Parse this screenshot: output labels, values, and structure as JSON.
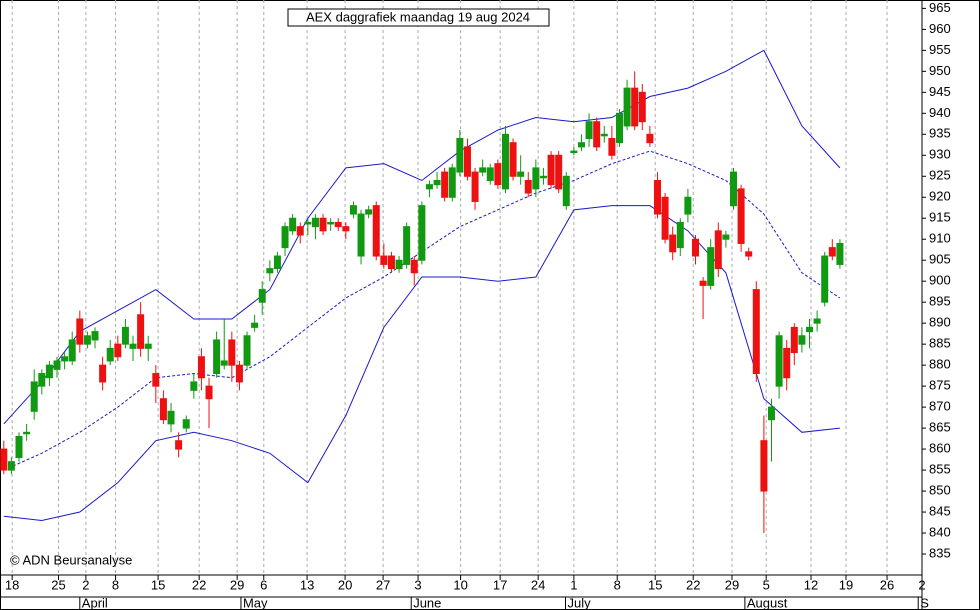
{
  "chart_data": {
    "type": "candlestick",
    "title": "AEX daggrafiek maandag 19 aug 2024",
    "annotation": "© ADN Beursanalyse",
    "up_color": "#119911",
    "down_color": "#ee1111",
    "band_color": "#1a1acc",
    "xlim": [
      -0.5,
      120.8
    ],
    "ylim": [
      830,
      967
    ],
    "yticks": [
      835,
      840,
      845,
      850,
      855,
      860,
      865,
      870,
      875,
      880,
      885,
      890,
      895,
      900,
      905,
      910,
      915,
      920,
      925,
      930,
      935,
      940,
      945,
      950,
      955,
      960,
      965
    ],
    "xticks": [
      {
        "value": 1.1,
        "label": "18"
      },
      {
        "value": 7.2,
        "label": "25"
      },
      {
        "value": 10.8,
        "label": "2"
      },
      {
        "value": 14.7,
        "label": "8"
      },
      {
        "value": 20.3,
        "label": "15"
      },
      {
        "value": 25.7,
        "label": "22"
      },
      {
        "value": 30.7,
        "label": "29"
      },
      {
        "value": 34.2,
        "label": "6"
      },
      {
        "value": 39.9,
        "label": "13"
      },
      {
        "value": 44.9,
        "label": "20"
      },
      {
        "value": 49.9,
        "label": "27"
      },
      {
        "value": 54.5,
        "label": "3"
      },
      {
        "value": 60.1,
        "label": "10"
      },
      {
        "value": 65.3,
        "label": "17"
      },
      {
        "value": 70.3,
        "label": "24"
      },
      {
        "value": 75,
        "label": "1"
      },
      {
        "value": 80.7,
        "label": "8"
      },
      {
        "value": 85.7,
        "label": "15"
      },
      {
        "value": 90.7,
        "label": "22"
      },
      {
        "value": 95.8,
        "label": "29"
      },
      {
        "value": 100.3,
        "label": "5"
      },
      {
        "value": 106.2,
        "label": "12"
      },
      {
        "value": 110.8,
        "label": "19"
      },
      {
        "value": 116.2,
        "label": "26"
      },
      {
        "value": 120.8,
        "label": "2"
      }
    ],
    "month_ticks": [
      {
        "value": 10,
        "label": "April"
      },
      {
        "value": 31.2,
        "label": "May"
      },
      {
        "value": 53.6,
        "label": "June"
      },
      {
        "value": 73.9,
        "label": "July"
      },
      {
        "value": 97.5,
        "label": "August"
      },
      {
        "value": 120.3,
        "label": "S"
      }
    ],
    "candles": [
      [
        860,
        862,
        854,
        855
      ],
      [
        855,
        858,
        854,
        857
      ],
      [
        858,
        864,
        857,
        863
      ],
      [
        864,
        866,
        862,
        864
      ],
      [
        869,
        879,
        867,
        876
      ],
      [
        875,
        879,
        873,
        878
      ],
      [
        877,
        881,
        875,
        880
      ],
      [
        879,
        882,
        877,
        881
      ],
      [
        881,
        883,
        879,
        882
      ],
      [
        881,
        888,
        880,
        886
      ],
      [
        891,
        893,
        883,
        885
      ],
      [
        885,
        888,
        884,
        887
      ],
      [
        886,
        889,
        884,
        888
      ],
      [
        880,
        882,
        874,
        876
      ],
      [
        881,
        886,
        880,
        884
      ],
      [
        885,
        887,
        881,
        882
      ],
      [
        885,
        891,
        884,
        889
      ],
      [
        884,
        887,
        881,
        885
      ],
      [
        892,
        895,
        882,
        884
      ],
      [
        884,
        887,
        881,
        885
      ],
      [
        878,
        880,
        871,
        875
      ],
      [
        872,
        874,
        866,
        867
      ],
      [
        866,
        871,
        864,
        869
      ],
      [
        862,
        864,
        858,
        860
      ],
      [
        865,
        868,
        864,
        867
      ],
      [
        874,
        878,
        872,
        876
      ],
      [
        882,
        884,
        874,
        877
      ],
      [
        875,
        877,
        865,
        872
      ],
      [
        878,
        888,
        877,
        886
      ],
      [
        880,
        891,
        879,
        881
      ],
      [
        886,
        888,
        876,
        880
      ],
      [
        880,
        881,
        874,
        876
      ],
      [
        880,
        888,
        879,
        887
      ],
      [
        889,
        892,
        888,
        890
      ],
      [
        895,
        900,
        892,
        898
      ],
      [
        902,
        905,
        900,
        903
      ],
      [
        903,
        907,
        902,
        906
      ],
      [
        908,
        914,
        906,
        913
      ],
      [
        912,
        916,
        911,
        915
      ],
      [
        913,
        914,
        909,
        911
      ],
      [
        914,
        915,
        911,
        914
      ],
      [
        913,
        916,
        910,
        915
      ],
      [
        915,
        916,
        911,
        912
      ],
      [
        914,
        915,
        912,
        914
      ],
      [
        914,
        915,
        912,
        913
      ],
      [
        913,
        914,
        910,
        912
      ],
      [
        916,
        919,
        915,
        918
      ],
      [
        906,
        917,
        904,
        916
      ],
      [
        916,
        918,
        915,
        917
      ],
      [
        918,
        919,
        905,
        906
      ],
      [
        906,
        909,
        903,
        904
      ],
      [
        906,
        907,
        902,
        903
      ],
      [
        903,
        906,
        902,
        905
      ],
      [
        904,
        914,
        903,
        913
      ],
      [
        905,
        906,
        899,
        902
      ],
      [
        905,
        919,
        904,
        918
      ],
      [
        922,
        924,
        920,
        923
      ],
      [
        923,
        926,
        922,
        924
      ],
      [
        926,
        927,
        919,
        920
      ],
      [
        920,
        928,
        919,
        927
      ],
      [
        926,
        936,
        925,
        934
      ],
      [
        932,
        934,
        924,
        925
      ],
      [
        926,
        927,
        917,
        919
      ],
      [
        926,
        929,
        925,
        927
      ],
      [
        924,
        928,
        923,
        927
      ],
      [
        928,
        929,
        922,
        923
      ],
      [
        922,
        937,
        921,
        935
      ],
      [
        933,
        934,
        924,
        925
      ],
      [
        925,
        930,
        923,
        926
      ],
      [
        924,
        926,
        920,
        921
      ],
      [
        922,
        929,
        920,
        927
      ],
      [
        925,
        927,
        923,
        925
      ],
      [
        930,
        931,
        922,
        923
      ],
      [
        930,
        931,
        921,
        922
      ],
      [
        918,
        926,
        917,
        925
      ],
      [
        931,
        932,
        930,
        931
      ],
      [
        932,
        935,
        931,
        933
      ],
      [
        934,
        940,
        932,
        938
      ],
      [
        938,
        939,
        931,
        932
      ],
      [
        935,
        937,
        933,
        935
      ],
      [
        934,
        937,
        929,
        930
      ],
      [
        933,
        941,
        932,
        940
      ],
      [
        937,
        948,
        936,
        946
      ],
      [
        946,
        950,
        936,
        937
      ],
      [
        945,
        947,
        936,
        938
      ],
      [
        935,
        937,
        932,
        933
      ],
      [
        924,
        926,
        915,
        916
      ],
      [
        920,
        921,
        909,
        910
      ],
      [
        911,
        913,
        905,
        907
      ],
      [
        908,
        915,
        906,
        914
      ],
      [
        916,
        922,
        914,
        920
      ],
      [
        910,
        911,
        904,
        906
      ],
      [
        900,
        901,
        891,
        899
      ],
      [
        899,
        910,
        898,
        908
      ],
      [
        912,
        914,
        901,
        903
      ],
      [
        910,
        912,
        908,
        911
      ],
      [
        918,
        927,
        917,
        926
      ],
      [
        922,
        923,
        907,
        909
      ],
      [
        907,
        908,
        905,
        906
      ],
      [
        898,
        900,
        876,
        878
      ],
      [
        862,
        868,
        840,
        850
      ],
      [
        867,
        872,
        857,
        870
      ],
      [
        875,
        888,
        872,
        887
      ],
      [
        884,
        886,
        874,
        877
      ],
      [
        889,
        890,
        880,
        883
      ],
      [
        885,
        889,
        883,
        887
      ],
      [
        888,
        891,
        884,
        889
      ],
      [
        890,
        893,
        888,
        891
      ],
      [
        895,
        907,
        894,
        906
      ],
      [
        908,
        910,
        905,
        906
      ],
      [
        904,
        910,
        903,
        909
      ]
    ],
    "band_x": [
      0,
      5,
      10,
      15,
      20,
      25,
      30,
      35,
      40,
      45,
      50,
      55,
      60,
      65,
      70,
      75,
      80,
      85,
      90,
      95,
      100,
      105,
      110
    ],
    "upper": [
      866,
      876,
      888,
      893,
      898,
      891,
      891,
      898,
      915,
      927,
      928,
      924,
      931,
      936,
      939,
      938,
      939,
      944,
      946,
      950,
      955,
      937,
      927
    ],
    "middle": [
      855,
      859,
      864,
      870,
      877,
      878,
      877,
      882,
      889,
      896,
      901,
      907,
      913,
      917,
      921,
      924,
      928,
      931,
      928,
      924,
      916,
      902,
      896
    ],
    "lower": [
      844,
      843,
      845,
      852,
      862,
      864,
      862,
      859,
      852,
      868,
      889,
      901,
      901,
      900,
      901,
      917,
      918,
      918,
      912,
      902,
      872,
      864,
      865
    ]
  }
}
